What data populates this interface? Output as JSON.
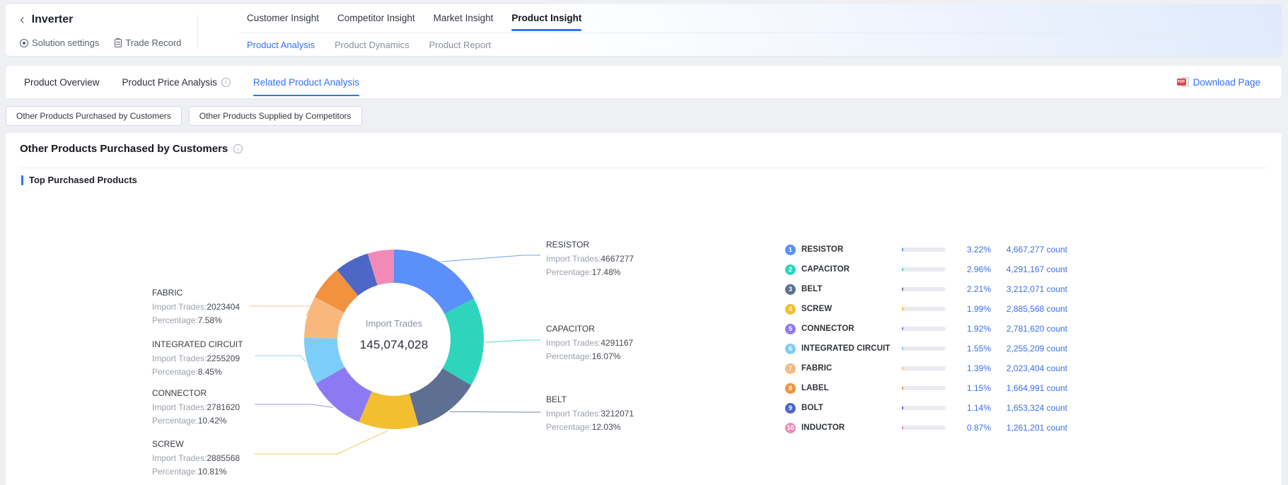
{
  "header": {
    "title": "Inverter",
    "actions": [
      {
        "label": "Solution settings"
      },
      {
        "label": "Trade Record"
      }
    ],
    "tabs": [
      {
        "label": "Customer Insight",
        "active": false
      },
      {
        "label": "Competitor Insight",
        "active": false
      },
      {
        "label": "Market Insight",
        "active": false
      },
      {
        "label": "Product Insight",
        "active": true
      }
    ],
    "subtabs": [
      {
        "label": "Product Analysis",
        "active": true
      },
      {
        "label": "Product Dynamics",
        "active": false
      },
      {
        "label": "Product Report",
        "active": false
      }
    ]
  },
  "nav": {
    "items": [
      {
        "label": "Product Overview",
        "active": false,
        "info": false
      },
      {
        "label": "Product Price Analysis",
        "active": false,
        "info": true
      },
      {
        "label": "Related Product Analysis",
        "active": true,
        "info": false
      }
    ],
    "download_label": "Download Page"
  },
  "view_buttons": [
    {
      "label": "Other Products Purchased by Customers",
      "selected": true
    },
    {
      "label": "Other Products Supplied by Competitors",
      "selected": false
    }
  ],
  "panel": {
    "title": "Other Products Purchased by Customers",
    "section": "Top Purchased Products"
  },
  "chart_data": {
    "type": "pie",
    "variant": "donut",
    "center_label": "Import Trades",
    "center_value": "145,074,028",
    "legend_position": "right-list",
    "callout_labels": {
      "trades": "Import Trades:",
      "pct": "Percentage:"
    },
    "count_suffix": "count",
    "accent_color": "#3370ff",
    "series": [
      {
        "rank": 1,
        "name": "RESISTOR",
        "import_trades": 4667277,
        "donut_pct": 17.48,
        "share_pct": "3.22%",
        "count_display": "4,667,277 count",
        "color": "#5B8FF9"
      },
      {
        "rank": 2,
        "name": "CAPACITOR",
        "import_trades": 4291167,
        "donut_pct": 16.07,
        "share_pct": "2.96%",
        "count_display": "4,291,167 count",
        "color": "#2ED5BC"
      },
      {
        "rank": 3,
        "name": "BELT",
        "import_trades": 3212071,
        "donut_pct": 12.03,
        "share_pct": "2.21%",
        "count_display": "3,212,071 count",
        "color": "#5D7092"
      },
      {
        "rank": 4,
        "name": "SCREW",
        "import_trades": 2885568,
        "donut_pct": 10.81,
        "share_pct": "1.99%",
        "count_display": "2,885,568 count",
        "color": "#F3BE30"
      },
      {
        "rank": 5,
        "name": "CONNECTOR",
        "import_trades": 2781620,
        "donut_pct": 10.42,
        "share_pct": "1.92%",
        "count_display": "2,781,620 count",
        "color": "#8D7AF2"
      },
      {
        "rank": 6,
        "name": "INTEGRATED CIRCUIT",
        "import_trades": 2255209,
        "donut_pct": 8.45,
        "share_pct": "1.55%",
        "count_display": "2,255,209 count",
        "color": "#7CCEF8"
      },
      {
        "rank": 7,
        "name": "FABRIC",
        "import_trades": 2023404,
        "donut_pct": 7.58,
        "share_pct": "1.39%",
        "count_display": "2,023,404 count",
        "color": "#F8B87D"
      },
      {
        "rank": 8,
        "name": "LABEL",
        "import_trades": 1664991,
        "donut_pct": 6.24,
        "share_pct": "1.15%",
        "count_display": "1,664,991 count",
        "color": "#F2913E"
      },
      {
        "rank": 9,
        "name": "BOLT",
        "import_trades": 1653324,
        "donut_pct": 6.19,
        "share_pct": "1.14%",
        "count_display": "1,653,324 count",
        "color": "#4D67C6"
      },
      {
        "rank": 10,
        "name": "INDUCTOR",
        "import_trades": 1261201,
        "donut_pct": 4.72,
        "share_pct": "0.87%",
        "count_display": "1,261,201 count",
        "color": "#F08BB7"
      }
    ]
  }
}
